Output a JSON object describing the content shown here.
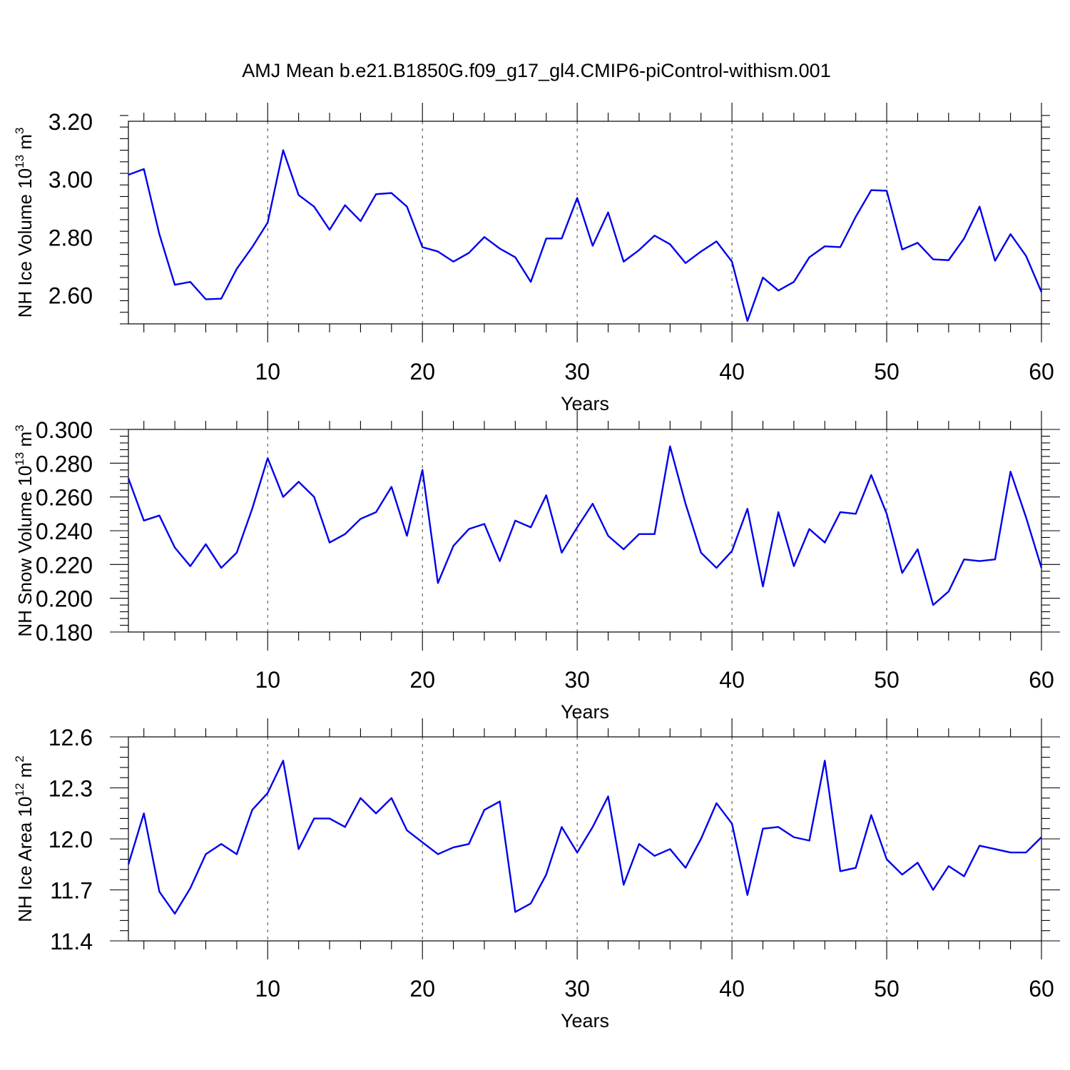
{
  "chart_data": [
    {
      "type": "line",
      "title": "AMJ Mean b.e21.B1850G.f09_g17_gl4.CMIP6-piControl-withism.001",
      "xlabel": "Years",
      "ylabel": "NH Ice Volume 10",
      "ylabel_exp": "13",
      "ylabel_unit": " m",
      "ylabel_unit_exp": "3",
      "xlim": [
        1,
        60
      ],
      "ylim": [
        2.5,
        3.2
      ],
      "xticks": [
        10,
        20,
        30,
        40,
        50,
        60
      ],
      "xtick_labels": [
        "10",
        "20",
        "30",
        "40",
        "50",
        "60"
      ],
      "yticks": [
        2.6,
        2.8,
        3.0,
        3.2
      ],
      "ytick_labels": [
        "2.60",
        "2.80",
        "3.00",
        "3.20"
      ],
      "grid": "vertical dashed at major ticks",
      "series": [
        {
          "name": "NH Ice Volume",
          "color": "#0000ee",
          "x": [
            1,
            2,
            3,
            4,
            5,
            6,
            7,
            8,
            9,
            10,
            11,
            12,
            13,
            14,
            15,
            16,
            17,
            18,
            19,
            20,
            21,
            22,
            23,
            24,
            25,
            26,
            27,
            28,
            29,
            30,
            31,
            32,
            33,
            34,
            35,
            36,
            37,
            38,
            39,
            40,
            41,
            42,
            43,
            44,
            45,
            46,
            47,
            48,
            49,
            50,
            51,
            52,
            53,
            54,
            55,
            56,
            57,
            58,
            59,
            60
          ],
          "values": [
            3.015,
            3.035,
            2.81,
            2.635,
            2.645,
            2.585,
            2.587,
            2.69,
            2.765,
            2.85,
            3.1,
            2.945,
            2.905,
            2.825,
            2.91,
            2.855,
            2.948,
            2.952,
            2.905,
            2.765,
            2.75,
            2.715,
            2.745,
            2.8,
            2.76,
            2.73,
            2.645,
            2.795,
            2.795,
            2.935,
            2.77,
            2.885,
            2.715,
            2.755,
            2.805,
            2.775,
            2.71,
            2.75,
            2.785,
            2.715,
            2.51,
            2.66,
            2.615,
            2.645,
            2.73,
            2.768,
            2.765,
            2.87,
            2.962,
            2.96,
            2.757,
            2.78,
            2.723,
            2.72,
            2.795,
            2.905,
            2.718,
            2.81,
            2.735,
            2.61
          ]
        }
      ]
    },
    {
      "type": "line",
      "title": "",
      "xlabel": "Years",
      "ylabel": "NH Snow Volume 10",
      "ylabel_exp": "13",
      "ylabel_unit": " m",
      "ylabel_unit_exp": "3",
      "xlim": [
        1,
        60
      ],
      "ylim": [
        0.18,
        0.3
      ],
      "xticks": [
        10,
        20,
        30,
        40,
        50,
        60
      ],
      "xtick_labels": [
        "10",
        "20",
        "30",
        "40",
        "50",
        "60"
      ],
      "yticks": [
        0.18,
        0.2,
        0.22,
        0.24,
        0.26,
        0.28,
        0.3
      ],
      "ytick_labels": [
        "0.180",
        "0.200",
        "0.220",
        "0.240",
        "0.260",
        "0.280",
        "0.300"
      ],
      "grid": "vertical dashed at major ticks",
      "series": [
        {
          "name": "NH Snow Volume",
          "color": "#0000ee",
          "x": [
            1,
            2,
            3,
            4,
            5,
            6,
            7,
            8,
            9,
            10,
            11,
            12,
            13,
            14,
            15,
            16,
            17,
            18,
            19,
            20,
            21,
            22,
            23,
            24,
            25,
            26,
            27,
            28,
            29,
            30,
            31,
            32,
            33,
            34,
            35,
            36,
            37,
            38,
            39,
            40,
            41,
            42,
            43,
            44,
            45,
            46,
            47,
            48,
            49,
            50,
            51,
            52,
            53,
            54,
            55,
            56,
            57,
            58,
            59,
            60
          ],
          "values": [
            0.271,
            0.246,
            0.249,
            0.23,
            0.219,
            0.232,
            0.218,
            0.227,
            0.253,
            0.283,
            0.26,
            0.269,
            0.26,
            0.233,
            0.238,
            0.247,
            0.251,
            0.266,
            0.237,
            0.276,
            0.209,
            0.231,
            0.241,
            0.244,
            0.222,
            0.246,
            0.242,
            0.261,
            0.227,
            0.242,
            0.256,
            0.237,
            0.229,
            0.238,
            0.238,
            0.29,
            0.256,
            0.227,
            0.218,
            0.228,
            0.253,
            0.207,
            0.251,
            0.219,
            0.241,
            0.233,
            0.251,
            0.25,
            0.273,
            0.25,
            0.215,
            0.229,
            0.196,
            0.204,
            0.223,
            0.222,
            0.223,
            0.275,
            0.248,
            0.218
          ]
        }
      ]
    },
    {
      "type": "line",
      "title": "",
      "xlabel": "Years",
      "ylabel": "NH Ice Area 10",
      "ylabel_exp": "12",
      "ylabel_unit": " m",
      "ylabel_unit_exp": "2",
      "xlim": [
        1,
        60
      ],
      "ylim": [
        11.4,
        12.6
      ],
      "xticks": [
        10,
        20,
        30,
        40,
        50,
        60
      ],
      "xtick_labels": [
        "10",
        "20",
        "30",
        "40",
        "50",
        "60"
      ],
      "yticks": [
        11.4,
        11.7,
        12.0,
        12.3,
        12.6
      ],
      "ytick_labels": [
        "11.4",
        "11.7",
        "12.0",
        "12.3",
        "12.6"
      ],
      "grid": "vertical dashed at major ticks",
      "series": [
        {
          "name": "NH Ice Area",
          "color": "#0000ee",
          "x": [
            1,
            2,
            3,
            4,
            5,
            6,
            7,
            8,
            9,
            10,
            11,
            12,
            13,
            14,
            15,
            16,
            17,
            18,
            19,
            20,
            21,
            22,
            23,
            24,
            25,
            26,
            27,
            28,
            29,
            30,
            31,
            32,
            33,
            34,
            35,
            36,
            37,
            38,
            39,
            40,
            41,
            42,
            43,
            44,
            45,
            46,
            47,
            48,
            49,
            50,
            51,
            52,
            53,
            54,
            55,
            56,
            57,
            58,
            59,
            60
          ],
          "values": [
            11.85,
            12.15,
            11.69,
            11.56,
            11.71,
            11.91,
            11.97,
            11.91,
            12.17,
            12.27,
            12.46,
            11.94,
            12.12,
            12.12,
            12.07,
            12.24,
            12.15,
            12.24,
            12.05,
            11.98,
            11.91,
            11.95,
            11.97,
            12.17,
            12.22,
            11.57,
            11.62,
            11.79,
            12.07,
            11.92,
            12.07,
            12.25,
            11.73,
            11.97,
            11.9,
            11.94,
            11.83,
            12.0,
            12.21,
            12.09,
            11.67,
            12.06,
            12.07,
            12.01,
            11.99,
            12.46,
            11.81,
            11.83,
            12.14,
            11.88,
            11.79,
            11.86,
            11.7,
            11.84,
            11.78,
            11.96,
            11.94,
            11.92,
            11.92,
            12.01
          ]
        }
      ]
    }
  ]
}
